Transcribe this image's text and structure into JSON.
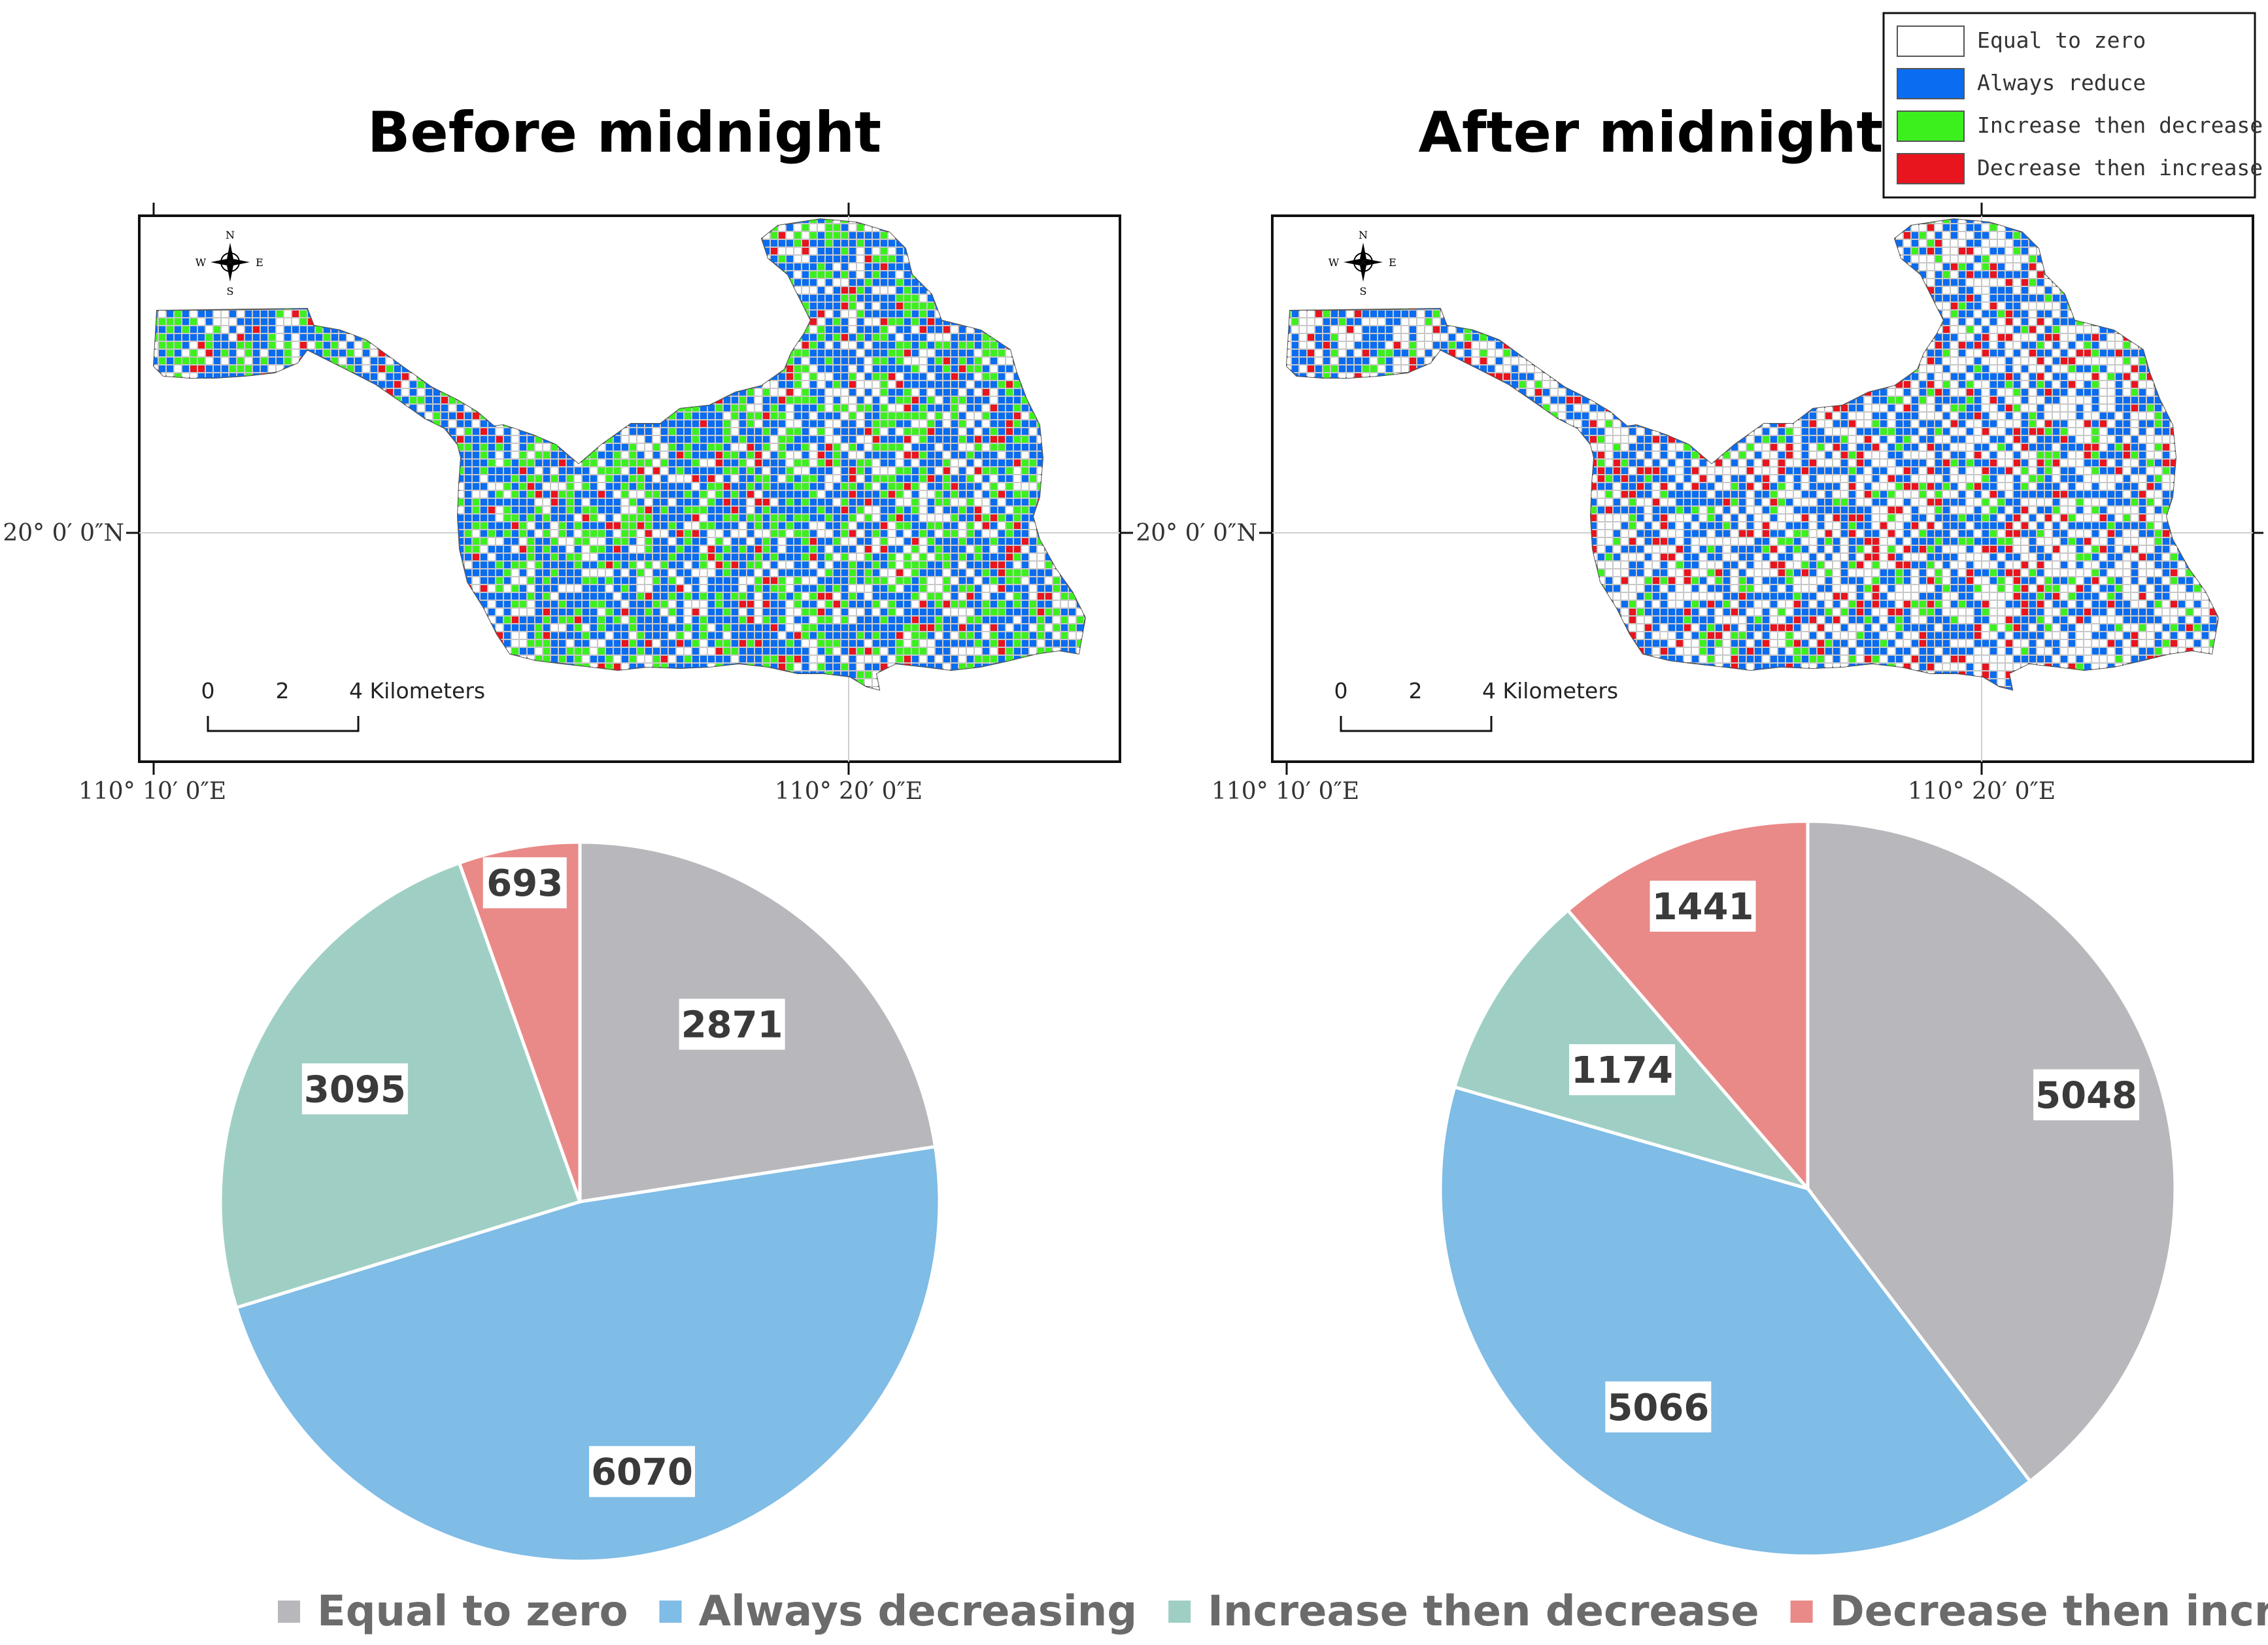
{
  "maps": {
    "before": {
      "title": "Before midnight",
      "lat_label": "20° 0′ 0″N",
      "lon_left": "110° 10′ 0″E",
      "lon_right": "110° 20′ 0″E",
      "scale": {
        "zero": "0",
        "mid": "2",
        "end": "4 Kilometers"
      }
    },
    "after": {
      "title": "After midnight",
      "lat_label": "20° 0′ 0″N",
      "lon_left": "110° 10′ 0″E",
      "lon_right": "110° 20′ 0″E",
      "scale": {
        "zero": "0",
        "mid": "2",
        "end": "4 Kilometers"
      }
    },
    "compass": {
      "n": "N",
      "s": "S",
      "e": "E",
      "w": "W"
    },
    "cell_share": {
      "before": [
        0.22,
        0.47,
        0.25,
        0.06
      ],
      "after": [
        0.4,
        0.4,
        0.09,
        0.11
      ]
    },
    "legend": [
      {
        "label": "Equal to zero",
        "color": "#ffffff"
      },
      {
        "label": "Always reduce",
        "color": "#0a6cf0"
      },
      {
        "label": "Increase then decrease",
        "color": "#3cf01e"
      },
      {
        "label": "Decrease then increase",
        "color": "#e8141e"
      }
    ]
  },
  "chart_data": [
    {
      "type": "pie",
      "title": "Before midnight",
      "categories": [
        "Equal to zero",
        "Always decreasing",
        "Increase then decrease",
        "Decrease then increase"
      ],
      "values": [
        2871,
        6070,
        3095,
        693
      ],
      "colors": [
        "#b8b8bc",
        "#7fbce6",
        "#9fcfc4",
        "#e98a88"
      ]
    },
    {
      "type": "pie",
      "title": "After midnight",
      "categories": [
        "Equal to zero",
        "Always decreasing",
        "Increase then decrease",
        "Decrease then increase"
      ],
      "values": [
        5048,
        5066,
        1174,
        1441
      ],
      "colors": [
        "#b8b8bc",
        "#7fbce6",
        "#9fcfc4",
        "#e98a88"
      ]
    }
  ],
  "bottom_legend": [
    {
      "label": "Equal to zero",
      "color": "#b8b8bc"
    },
    {
      "label": "Always decreasing",
      "color": "#7fbce6"
    },
    {
      "label": "Increase then decrease",
      "color": "#9fcfc4"
    },
    {
      "label": "Decrease then increase",
      "color": "#e98a88"
    }
  ]
}
